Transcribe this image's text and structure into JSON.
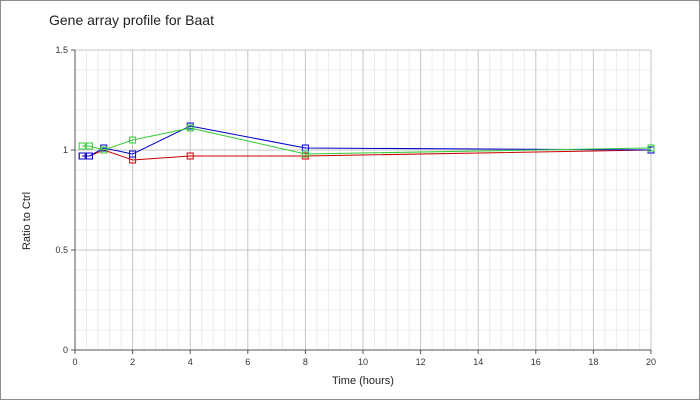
{
  "chart_data": {
    "type": "line",
    "title": "Gene array profile for Baat",
    "xlabel": "Time (hours)",
    "ylabel": "Ratio to Ctrl",
    "xlim": [
      0,
      20
    ],
    "ylim": [
      0,
      1.5
    ],
    "x_ticks": [
      0,
      2,
      4,
      6,
      8,
      10,
      12,
      14,
      16,
      18,
      20
    ],
    "y_ticks": [
      0,
      0.5,
      1,
      1.5
    ],
    "y_tick_labels": [
      "0",
      "0.5",
      "1",
      "1.5"
    ],
    "grid": true,
    "legend": false,
    "series": [
      {
        "color": "#cc0000",
        "marker": "square",
        "x": [
          0.25,
          0.5,
          1,
          2,
          4,
          8,
          20
        ],
        "y": [
          0.97,
          0.97,
          1.0,
          0.95,
          0.97,
          0.97,
          1.0
        ]
      },
      {
        "color": "#0000cc",
        "marker": "square",
        "x": [
          0.25,
          0.5,
          1,
          2,
          4,
          8,
          20
        ],
        "y": [
          0.97,
          0.97,
          1.01,
          0.98,
          1.12,
          1.01,
          1.0
        ]
      },
      {
        "color": "#33cc33",
        "marker": "square",
        "x": [
          0.25,
          0.5,
          1,
          2,
          4,
          8,
          20
        ],
        "y": [
          1.02,
          1.02,
          1.0,
          1.05,
          1.11,
          0.98,
          1.01
        ]
      }
    ]
  }
}
